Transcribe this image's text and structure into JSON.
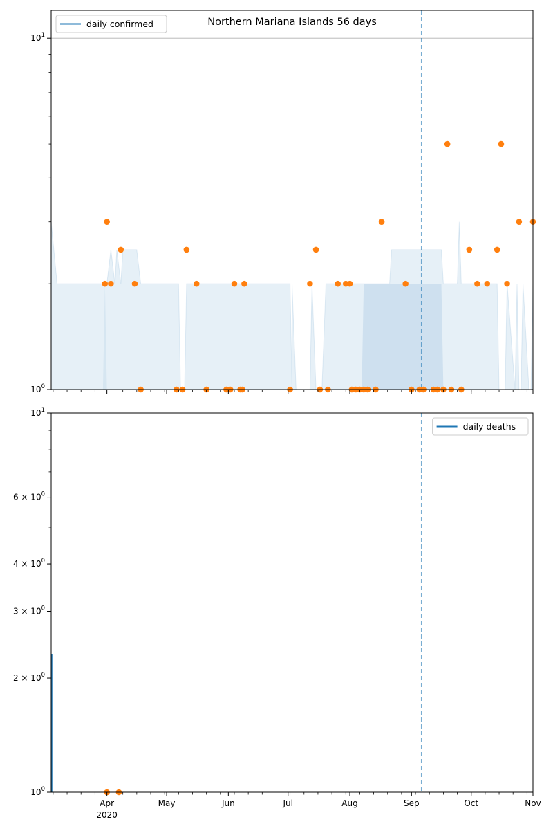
{
  "chart_data": [
    {
      "type": "scatter",
      "title": "Northern Mariana Islands 56 days",
      "legend": [
        "daily confirmed"
      ],
      "legend_position": "top-left",
      "y_scale": "log",
      "ylim": [
        1,
        12
      ],
      "y_ticks": [
        {
          "value": 10,
          "label": "10",
          "exp": "1"
        },
        {
          "value": 1,
          "label": "10",
          "exp": "0"
        }
      ],
      "xlim": [
        "2020-03-04",
        "2020-11-01"
      ],
      "x_ticks": [
        {
          "date": "2020-04-01",
          "label": "Apr",
          "sub": "2020"
        },
        {
          "date": "2020-05-01",
          "label": "May"
        },
        {
          "date": "2020-06-01",
          "label": "Jun"
        },
        {
          "date": "2020-07-01",
          "label": "Jul"
        },
        {
          "date": "2020-08-01",
          "label": "Aug"
        },
        {
          "date": "2020-09-01",
          "label": "Sep"
        },
        {
          "date": "2020-10-01",
          "label": "Oct"
        },
        {
          "date": "2020-11-01",
          "label": "Nov"
        }
      ],
      "x_tick_labels_shown": false,
      "grid": "y-major",
      "vline": "2020-09-06",
      "series": [
        {
          "name": "daily confirmed",
          "points": [
            [
              "2020-03-31",
              2
            ],
            [
              "2020-04-01",
              3
            ],
            [
              "2020-04-03",
              2
            ],
            [
              "2020-04-08",
              2.5
            ],
            [
              "2020-04-15",
              2
            ],
            [
              "2020-04-18",
              1
            ],
            [
              "2020-05-06",
              1
            ],
            [
              "2020-05-09",
              1
            ],
            [
              "2020-05-11",
              2.5
            ],
            [
              "2020-05-16",
              2
            ],
            [
              "2020-05-21",
              1
            ],
            [
              "2020-05-31",
              1
            ],
            [
              "2020-06-02",
              1
            ],
            [
              "2020-06-04",
              2
            ],
            [
              "2020-06-07",
              1
            ],
            [
              "2020-06-08",
              1
            ],
            [
              "2020-06-09",
              2
            ],
            [
              "2020-07-02",
              1
            ],
            [
              "2020-07-12",
              2
            ],
            [
              "2020-07-15",
              2.5
            ],
            [
              "2020-07-17",
              1
            ],
            [
              "2020-07-21",
              1
            ],
            [
              "2020-07-26",
              2
            ],
            [
              "2020-07-30",
              2
            ],
            [
              "2020-08-01",
              2
            ],
            [
              "2020-08-02",
              1
            ],
            [
              "2020-08-04",
              1
            ],
            [
              "2020-08-06",
              1
            ],
            [
              "2020-08-08",
              1
            ],
            [
              "2020-08-10",
              1
            ],
            [
              "2020-08-14",
              1
            ],
            [
              "2020-08-17",
              3
            ],
            [
              "2020-08-29",
              2
            ],
            [
              "2020-09-01",
              1
            ],
            [
              "2020-09-05",
              1
            ],
            [
              "2020-09-07",
              1
            ],
            [
              "2020-09-12",
              1
            ],
            [
              "2020-09-14",
              1
            ],
            [
              "2020-09-17",
              1
            ],
            [
              "2020-09-19",
              5
            ],
            [
              "2020-09-21",
              1
            ],
            [
              "2020-09-26",
              1
            ],
            [
              "2020-09-30",
              2.5
            ],
            [
              "2020-10-04",
              2
            ],
            [
              "2020-10-09",
              2
            ],
            [
              "2020-10-14",
              2.5
            ],
            [
              "2020-10-16",
              5
            ],
            [
              "2020-10-19",
              2
            ],
            [
              "2020-10-25",
              3
            ],
            [
              "2020-11-01",
              3
            ]
          ]
        }
      ]
    },
    {
      "type": "scatter",
      "legend": [
        "daily deaths"
      ],
      "legend_position": "top-right",
      "y_scale": "log",
      "ylim": [
        1,
        10
      ],
      "y_ticks": [
        {
          "value": 10,
          "label": "10",
          "exp": "1"
        },
        {
          "value": 6,
          "label": "6 × 10",
          "exp": "0"
        },
        {
          "value": 4,
          "label": "4 × 10",
          "exp": "0"
        },
        {
          "value": 3,
          "label": "3 × 10",
          "exp": "0"
        },
        {
          "value": 2,
          "label": "2 × 10",
          "exp": "0"
        },
        {
          "value": 1,
          "label": "10",
          "exp": "0"
        }
      ],
      "xlim": [
        "2020-03-04",
        "2020-11-01"
      ],
      "x_ticks": [
        {
          "date": "2020-04-01",
          "label": "Apr",
          "sub": "2020"
        },
        {
          "date": "2020-05-01",
          "label": "May"
        },
        {
          "date": "2020-06-01",
          "label": "Jun"
        },
        {
          "date": "2020-07-01",
          "label": "Jul"
        },
        {
          "date": "2020-08-01",
          "label": "Aug"
        },
        {
          "date": "2020-09-01",
          "label": "Sep"
        },
        {
          "date": "2020-10-01",
          "label": "Oct"
        },
        {
          "date": "2020-11-01",
          "label": "Nov"
        }
      ],
      "x_tick_labels_shown": true,
      "grid": "none",
      "vline": "2020-09-06",
      "series": [
        {
          "name": "daily deaths",
          "points": [
            [
              "2020-04-01",
              1
            ],
            [
              "2020-04-07",
              1
            ]
          ]
        }
      ]
    }
  ],
  "colors": {
    "line": "#1f77b4",
    "points": "#ff7f0e",
    "band": "#1f77b4",
    "vline": "#1f77b4",
    "grid": "#b0b0b0"
  }
}
